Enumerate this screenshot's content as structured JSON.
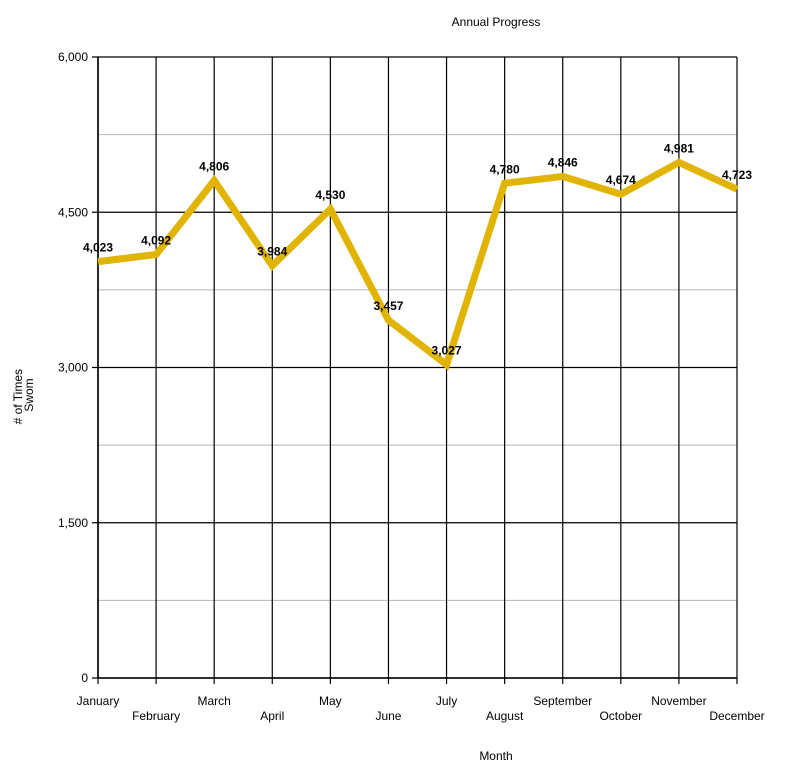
{
  "chart_data": {
    "type": "line",
    "title": "Annual Progress",
    "xlabel": "Month",
    "ylabel": [
      "# of Times",
      "Swom"
    ],
    "categories": [
      "January",
      "February",
      "March",
      "April",
      "May",
      "June",
      "July",
      "August",
      "September",
      "October",
      "November",
      "December"
    ],
    "series": [
      {
        "values": [
          4023,
          4092,
          4806,
          3984,
          4530,
          3457,
          3027,
          4780,
          4846,
          4674,
          4981,
          4723
        ],
        "labels": [
          "4,023",
          "4,092",
          "4,806",
          "3,984",
          "4,530",
          "3,457",
          "3,027",
          "4,780",
          "4,846",
          "4,674",
          "4,981",
          "4,723"
        ]
      }
    ],
    "ylim": [
      0,
      6000
    ],
    "yticks": [
      0,
      1500,
      3000,
      4500,
      6000
    ],
    "ytick_labels": [
      "0",
      "1,500",
      "3,000",
      "4,500",
      "6,000"
    ],
    "minor_gridlines": [
      750,
      2250,
      3750,
      5250
    ],
    "grid": true,
    "legend": "none",
    "colors": {
      "line": "#e0b400",
      "major_grid": "#000000",
      "minor_grid": "#b5b5b5"
    }
  }
}
